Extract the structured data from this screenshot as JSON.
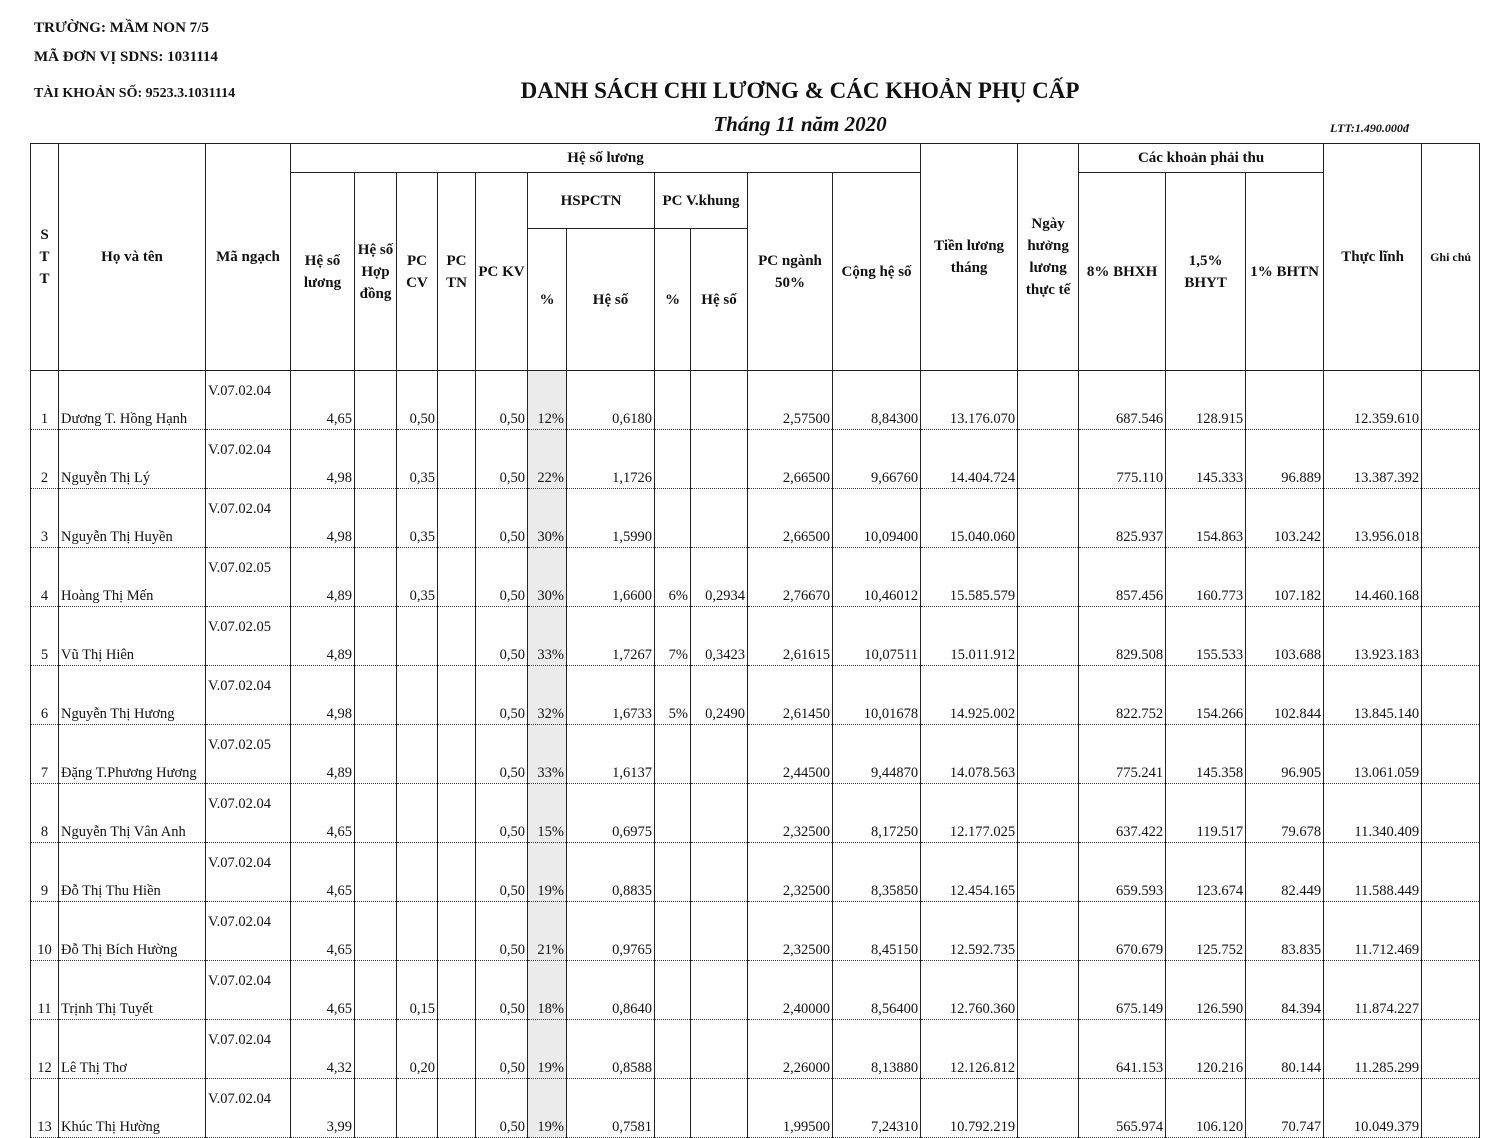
{
  "header": {
    "school": "TRƯỜNG: MẦM NON 7/5",
    "unit_code": "MÃ ĐƠN VỊ SDNS: 1031114",
    "account": "TÀI KHOẢN SỐ: 9523.3.1031114",
    "title": "DANH SÁCH CHI LƯƠNG & CÁC KHOẢN PHỤ CẤP",
    "subtitle": "Tháng 11 năm 2020",
    "note": "LTT:1.490.000đ"
  },
  "table": {
    "columns": {
      "stt": "STT",
      "name": "Họ và tên",
      "code": "Mã ngạch",
      "group_coef": "Hệ số lương",
      "salary_month": "Tiền lương tháng",
      "days": "Ngày hưởng lương thực tế",
      "group_deduct": "Các khoản phải thu",
      "net": "Thực lĩnh",
      "note": "Ghi chú",
      "coef": "Hệ số lương",
      "contract": "Hệ số Hợp đồng",
      "pccv": "PC CV",
      "pctn": "PC TN",
      "pckv": "PC KV",
      "hspctn": "HSPCTN",
      "vkhung": "PC V.khung",
      "pcnganh": "PC ngành 50%",
      "total_coef": "Cộng hệ số",
      "bhxh": "8% BHXH",
      "bhyt": "1,5% BHYT",
      "bhtn": "1% BHTN",
      "hspctn_pct": "%",
      "hspctn_coef": "Hệ số",
      "vkhung_pct": "%",
      "vkhung_coef": "Hệ số"
    },
    "rows": [
      [
        "1",
        "Dương T. Hồng Hạnh",
        "V.07.02.04",
        "4,65",
        null,
        "0,50",
        null,
        "0,50",
        "12%",
        "0,6180",
        null,
        null,
        "2,57500",
        "8,84300",
        "13.176.070",
        null,
        "687.546",
        "128.915",
        null,
        "12.359.610",
        null
      ],
      [
        "2",
        "Nguyễn Thị Lý",
        "V.07.02.04",
        "4,98",
        null,
        "0,35",
        null,
        "0,50",
        "22%",
        "1,1726",
        null,
        null,
        "2,66500",
        "9,66760",
        "14.404.724",
        null,
        "775.110",
        "145.333",
        "96.889",
        "13.387.392",
        null
      ],
      [
        "3",
        "Nguyễn Thị Huyền",
        "V.07.02.04",
        "4,98",
        null,
        "0,35",
        null,
        "0,50",
        "30%",
        "1,5990",
        null,
        null,
        "2,66500",
        "10,09400",
        "15.040.060",
        null,
        "825.937",
        "154.863",
        "103.242",
        "13.956.018",
        null
      ],
      [
        "4",
        "Hoàng Thị Mến",
        "V.07.02.05",
        "4,89",
        null,
        "0,35",
        null,
        "0,50",
        "30%",
        "1,6600",
        "6%",
        "0,2934",
        "2,76670",
        "10,46012",
        "15.585.579",
        null,
        "857.456",
        "160.773",
        "107.182",
        "14.460.168",
        null
      ],
      [
        "5",
        "Vũ Thị Hiên",
        "V.07.02.05",
        "4,89",
        null,
        null,
        null,
        "0,50",
        "33%",
        "1,7267",
        "7%",
        "0,3423",
        "2,61615",
        "10,07511",
        "15.011.912",
        null,
        "829.508",
        "155.533",
        "103.688",
        "13.923.183",
        null
      ],
      [
        "6",
        "Nguyễn Thị Hương",
        "V.07.02.04",
        "4,98",
        null,
        null,
        null,
        "0,50",
        "32%",
        "1,6733",
        "5%",
        "0,2490",
        "2,61450",
        "10,01678",
        "14.925.002",
        null,
        "822.752",
        "154.266",
        "102.844",
        "13.845.140",
        null
      ],
      [
        "7",
        "Đặng T.Phương Hương",
        "V.07.02.05",
        "4,89",
        null,
        null,
        null,
        "0,50",
        "33%",
        "1,6137",
        null,
        null,
        "2,44500",
        "9,44870",
        "14.078.563",
        null,
        "775.241",
        "145.358",
        "96.905",
        "13.061.059",
        null
      ],
      [
        "8",
        "Nguyễn Thị Vân Anh",
        "V.07.02.04",
        "4,65",
        null,
        null,
        null,
        "0,50",
        "15%",
        "0,6975",
        null,
        null,
        "2,32500",
        "8,17250",
        "12.177.025",
        null,
        "637.422",
        "119.517",
        "79.678",
        "11.340.409",
        null
      ],
      [
        "9",
        "Đỗ Thị Thu Hiền",
        "V.07.02.04",
        "4,65",
        null,
        null,
        null,
        "0,50",
        "19%",
        "0,8835",
        null,
        null,
        "2,32500",
        "8,35850",
        "12.454.165",
        null,
        "659.593",
        "123.674",
        "82.449",
        "11.588.449",
        null
      ],
      [
        "10",
        "Đỗ Thị Bích Hường",
        "V.07.02.04",
        "4,65",
        null,
        null,
        null,
        "0,50",
        "21%",
        "0,9765",
        null,
        null,
        "2,32500",
        "8,45150",
        "12.592.735",
        null,
        "670.679",
        "125.752",
        "83.835",
        "11.712.469",
        null
      ],
      [
        "11",
        "Trịnh Thị Tuyết",
        "V.07.02.04",
        "4,65",
        null,
        "0,15",
        null,
        "0,50",
        "18%",
        "0,8640",
        null,
        null,
        "2,40000",
        "8,56400",
        "12.760.360",
        null,
        "675.149",
        "126.590",
        "84.394",
        "11.874.227",
        null
      ],
      [
        "12",
        "Lê Thị Thơ",
        "V.07.02.04",
        "4,32",
        null,
        "0,20",
        null,
        "0,50",
        "19%",
        "0,8588",
        null,
        null,
        "2,26000",
        "8,13880",
        "12.126.812",
        null,
        "641.153",
        "120.216",
        "80.144",
        "11.285.299",
        null
      ],
      [
        "13",
        "Khúc Thị Hường",
        "V.07.02.04",
        "3,99",
        null,
        null,
        null,
        "0,50",
        "19%",
        "0,7581",
        null,
        null,
        "1,99500",
        "7,24310",
        "10.792.219",
        null,
        "565.974",
        "106.120",
        "70.747",
        "10.049.379",
        null
      ]
    ]
  }
}
